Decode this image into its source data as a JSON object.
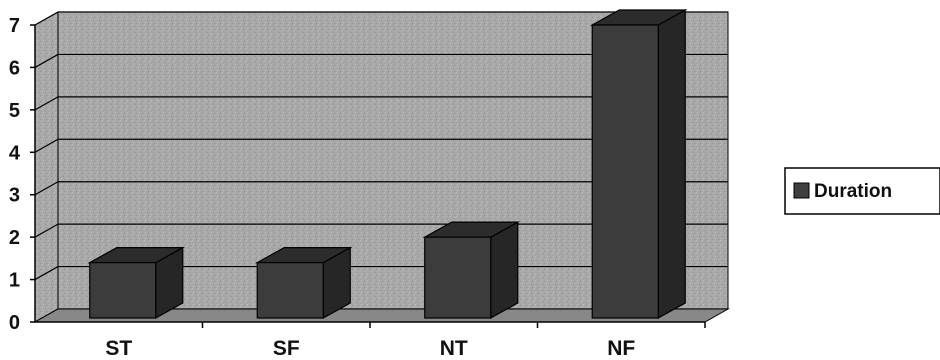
{
  "chart_data": {
    "type": "bar",
    "title": "",
    "xlabel": "",
    "ylabel": "",
    "categories": [
      "ST",
      "SF",
      "NT",
      "NF"
    ],
    "series": [
      {
        "name": "Duration",
        "values": [
          1.4,
          1.4,
          2.0,
          7.0
        ]
      }
    ],
    "ylim": [
      0,
      7
    ],
    "yticks": [
      "0",
      "1",
      "2",
      "3",
      "4",
      "5",
      "6",
      "7"
    ],
    "grid": true,
    "legend": "right",
    "style": "3d",
    "colors": {
      "bar_front": "#3c3c3c",
      "bar_side": "#262626",
      "bar_top": "#2c2c2c",
      "wall": "#a6a6a6",
      "floor": "#888888",
      "legend_swatch": "#3f3f3f"
    }
  }
}
